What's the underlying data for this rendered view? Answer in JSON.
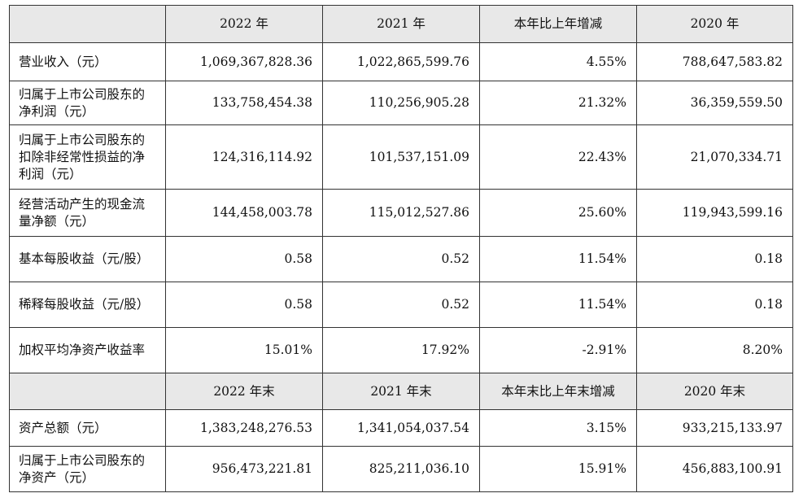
{
  "table": {
    "header1": [
      "",
      "2022 年",
      "2021 年",
      "本年比上年增减",
      "2020 年"
    ],
    "section1_rows": [
      {
        "label": "营业收入（元）",
        "values": [
          "1,069,367,828.36",
          "1,022,865,599.76",
          "4.55%",
          "788,647,583.82"
        ]
      },
      {
        "label": "归属于上市公司股东的净利润（元）",
        "values": [
          "133,758,454.38",
          "110,256,905.28",
          "21.32%",
          "36,359,559.50"
        ]
      },
      {
        "label": "归属于上市公司股东的扣除非经常性损益的净利润（元）",
        "values": [
          "124,316,114.92",
          "101,537,151.09",
          "22.43%",
          "21,070,334.71"
        ]
      },
      {
        "label": "经营活动产生的现金流量净额（元）",
        "values": [
          "144,458,003.78",
          "115,012,527.86",
          "25.60%",
          "119,943,599.16"
        ]
      },
      {
        "label": "基本每股收益（元/股）",
        "values": [
          "0.58",
          "0.52",
          "11.54%",
          "0.18"
        ]
      },
      {
        "label": "稀释每股收益（元/股）",
        "values": [
          "0.58",
          "0.52",
          "11.54%",
          "0.18"
        ]
      },
      {
        "label": "加权平均净资产收益率",
        "values": [
          "15.01%",
          "17.92%",
          "-2.91%",
          "8.20%"
        ]
      }
    ],
    "header2": [
      "",
      "2022 年末",
      "2021 年末",
      "本年末比上年末增减",
      "2020 年末"
    ],
    "section2_rows": [
      {
        "label": "资产总额（元）",
        "values": [
          "1,383,248,276.53",
          "1,341,054,037.54",
          "3.15%",
          "933,215,133.97"
        ]
      },
      {
        "label": "归属于上市公司股东的净资产（元）",
        "values": [
          "956,473,221.81",
          "825,211,036.10",
          "15.91%",
          "456,883,100.91"
        ]
      }
    ]
  }
}
